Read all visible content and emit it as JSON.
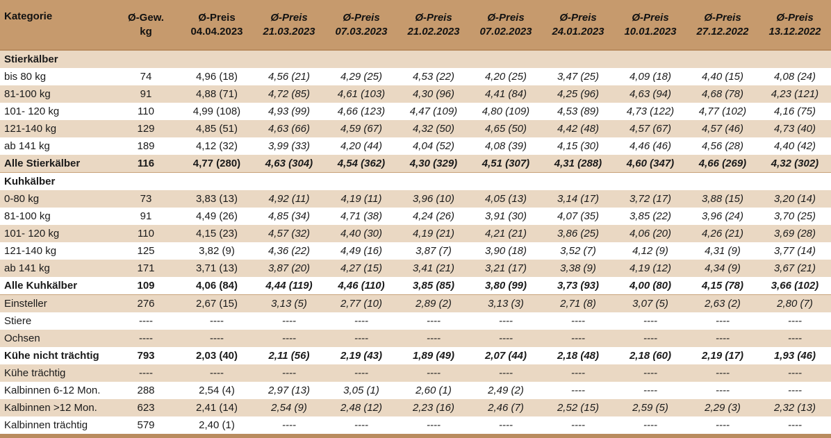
{
  "header": {
    "kategorie": "Kategorie",
    "gewicht_l1": "Ø-Gew.",
    "gewicht_l2": "kg",
    "preis_label": "Ø-Preis",
    "dates": [
      "04.04.2023",
      "21.03.2023",
      "07.03.2023",
      "21.02.2023",
      "07.02.2023",
      "24.01.2023",
      "10.01.2023",
      "27.12.2022",
      "13.12.2022"
    ]
  },
  "rows": [
    {
      "style": "sec",
      "label": "Stierkälber",
      "values": []
    },
    {
      "style": "light",
      "label": "bis 80 kg",
      "values": [
        "74",
        "4,96 (18)",
        "4,56 (21)",
        "4,29 (25)",
        "4,53 (22)",
        "4,20 (25)",
        "3,47 (25)",
        "4,09 (18)",
        "4,40 (15)",
        "4,08 (24)"
      ]
    },
    {
      "style": "tan",
      "label": "81-100 kg",
      "values": [
        "91",
        "4,88 (71)",
        "4,72 (85)",
        "4,61 (103)",
        "4,30 (96)",
        "4,41 (84)",
        "4,25 (96)",
        "4,63 (94)",
        "4,68 (78)",
        "4,23 (121)"
      ]
    },
    {
      "style": "light",
      "label": "101- 120 kg",
      "values": [
        "110",
        "4,99 (108)",
        "4,93 (99)",
        "4,66 (123)",
        "4,47 (109)",
        "4,80 (109)",
        "4,53 (89)",
        "4,73 (122)",
        "4,77 (102)",
        "4,16 (75)"
      ]
    },
    {
      "style": "tan",
      "label": "121-140 kg",
      "values": [
        "129",
        "4,85 (51)",
        "4,63 (66)",
        "4,59 (67)",
        "4,32 (50)",
        "4,65 (50)",
        "4,42 (48)",
        "4,57 (67)",
        "4,57 (46)",
        "4,73 (40)"
      ]
    },
    {
      "style": "light",
      "label": "ab 141 kg",
      "values": [
        "189",
        "4,12 (32)",
        "3,99 (33)",
        "4,20 (44)",
        "4,04 (52)",
        "4,08 (39)",
        "4,15 (30)",
        "4,46 (46)",
        "4,56 (28)",
        "4,40 (42)"
      ]
    },
    {
      "style": "tan bold",
      "label": "Alle Stierkälber",
      "values": [
        "116",
        "4,77 (280)",
        "4,63 (304)",
        "4,54 (362)",
        "4,30 (329)",
        "4,51 (307)",
        "4,31 (288)",
        "4,60 (347)",
        "4,66 (269)",
        "4,32 (302)"
      ]
    },
    {
      "style": "wh bold gap",
      "label": "Kuhkälber",
      "values": []
    },
    {
      "style": "tan",
      "label": "0-80 kg",
      "values": [
        "73",
        "3,83 (13)",
        "4,92 (11)",
        "4,19 (11)",
        "3,96 (10)",
        "4,05 (13)",
        "3,14 (17)",
        "3,72 (17)",
        "3,88 (15)",
        "3,20 (14)"
      ]
    },
    {
      "style": "light",
      "label": "81-100 kg",
      "values": [
        "91",
        "4,49 (26)",
        "4,85 (34)",
        "4,71 (38)",
        "4,24 (26)",
        "3,91 (30)",
        "4,07 (35)",
        "3,85 (22)",
        "3,96 (24)",
        "3,70 (25)"
      ]
    },
    {
      "style": "tan",
      "label": "101- 120 kg",
      "values": [
        "110",
        "4,15 (23)",
        "4,57 (32)",
        "4,40 (30)",
        "4,19 (21)",
        "4,21 (21)",
        "3,86 (25)",
        "4,06 (20)",
        "4,26 (21)",
        "3,69 (28)"
      ]
    },
    {
      "style": "light",
      "label": "121-140 kg",
      "values": [
        "125",
        "3,82 (9)",
        "4,36 (22)",
        "4,49 (16)",
        "3,87 (7)",
        "3,90 (18)",
        "3,52 (7)",
        "4,12 (9)",
        "4,31 (9)",
        "3,77 (14)"
      ]
    },
    {
      "style": "tan",
      "label": "ab 141 kg",
      "values": [
        "171",
        "3,71 (13)",
        "3,87 (20)",
        "4,27 (15)",
        "3,41 (21)",
        "3,21 (17)",
        "3,38 (9)",
        "4,19 (12)",
        "4,34 (9)",
        "3,67 (21)"
      ]
    },
    {
      "style": "light bold",
      "label": "Alle Kuhkälber",
      "values": [
        "109",
        "4,06 (84)",
        "4,44 (119)",
        "4,46 (110)",
        "3,85 (85)",
        "3,80 (99)",
        "3,73 (93)",
        "4,00 (80)",
        "4,15 (78)",
        "3,66 (102)"
      ]
    },
    {
      "style": "tan gap",
      "label": "Einsteller",
      "values": [
        "276",
        "2,67 (15)",
        "3,13 (5)",
        "2,77 (10)",
        "2,89 (2)",
        "3,13 (3)",
        "2,71 (8)",
        "3,07 (5)",
        "2,63 (2)",
        "2,80 (7)"
      ]
    },
    {
      "style": "light",
      "label": "Stiere",
      "values": [
        "----",
        "----",
        "----",
        "----",
        "----",
        "----",
        "----",
        "----",
        "----",
        "----"
      ]
    },
    {
      "style": "tan",
      "label": "Ochsen",
      "values": [
        "----",
        "----",
        "----",
        "----",
        "----",
        "----",
        "----",
        "----",
        "----",
        "----"
      ]
    },
    {
      "style": "light bold",
      "label": "Kühe nicht trächtig",
      "values": [
        "793",
        "2,03 (40)",
        "2,11 (56)",
        "2,19 (43)",
        "1,89 (49)",
        "2,07 (44)",
        "2,18 (48)",
        "2,18 (60)",
        "2,19 (17)",
        "1,93 (46)"
      ]
    },
    {
      "style": "tan",
      "label": "Kühe trächtig",
      "values": [
        "----",
        "----",
        "----",
        "----",
        "----",
        "----",
        "----",
        "----",
        "----",
        "----"
      ]
    },
    {
      "style": "light",
      "label": "Kalbinnen 6-12 Mon.",
      "values": [
        "288",
        "2,54 (4)",
        "2,97 (13)",
        "3,05 (1)",
        "2,60 (1)",
        "2,49 (2)",
        "----",
        "----",
        "----",
        "----"
      ]
    },
    {
      "style": "tan",
      "label": "Kalbinnen >12 Mon.",
      "values": [
        "623",
        "2,41 (14)",
        "2,54 (9)",
        "2,48 (12)",
        "2,23 (16)",
        "2,46 (7)",
        "2,52 (15)",
        "2,59 (5)",
        "2,29 (3)",
        "2,32 (13)"
      ]
    },
    {
      "style": "light",
      "label": "Kalbinnen trächtig",
      "values": [
        "579",
        "2,40 (1)",
        "----",
        "----",
        "----",
        "----",
        "----",
        "----",
        "----",
        "----"
      ]
    }
  ]
}
